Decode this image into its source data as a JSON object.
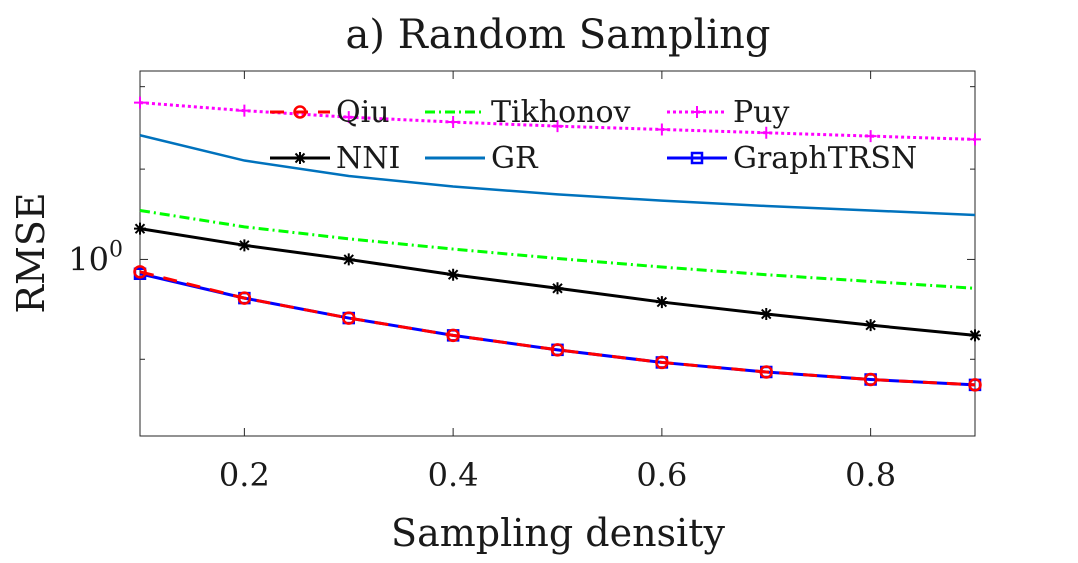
{
  "chart_data": {
    "type": "line",
    "title": "a) Random Sampling",
    "xlabel": "Sampling density",
    "ylabel": "RMSE",
    "yscale": "log",
    "xlim": [
      0.1,
      0.9
    ],
    "ylim": [
      0.83,
      1.22
    ],
    "xticks": [
      0.2,
      0.4,
      0.6,
      0.8
    ],
    "xtick_labels": [
      "0.2",
      "0.4",
      "0.6",
      "0.8"
    ],
    "yticks": [
      1.0
    ],
    "ytick_label_base": "10",
    "ytick_label_exp": "0",
    "grid": false,
    "legend_position": "top",
    "x": [
      0.1,
      0.2,
      0.3,
      0.4,
      0.5,
      0.6,
      0.7,
      0.8,
      0.9
    ],
    "series": [
      {
        "name": "Qiu",
        "color": "#ff0000",
        "dash": "14 10",
        "marker": "circle",
        "values": [
          0.987,
          0.96,
          0.94,
          0.923,
          0.909,
          0.897,
          0.888,
          0.881,
          0.876
        ]
      },
      {
        "name": "Tikhonov",
        "color": "#00ff00",
        "dash": "10 4 2 4",
        "marker": "none",
        "values": [
          1.053,
          1.035,
          1.022,
          1.011,
          1.001,
          0.992,
          0.984,
          0.977,
          0.97
        ]
      },
      {
        "name": "Puy",
        "color": "#ff00ff",
        "dash": "3 3",
        "marker": "plus",
        "values": [
          1.18,
          1.17,
          1.162,
          1.156,
          1.151,
          1.147,
          1.143,
          1.139,
          1.135
        ]
      },
      {
        "name": "NNI",
        "color": "#000000",
        "dash": "",
        "marker": "asterisk",
        "values": [
          1.033,
          1.015,
          1.0,
          0.984,
          0.97,
          0.956,
          0.944,
          0.933,
          0.923
        ]
      },
      {
        "name": "GR",
        "color": "#0072bd",
        "dash": "",
        "marker": "none",
        "values": [
          1.14,
          1.11,
          1.092,
          1.08,
          1.071,
          1.064,
          1.058,
          1.053,
          1.048
        ]
      },
      {
        "name": "GraphTRSN",
        "color": "#0000ff",
        "dash": "",
        "marker": "square",
        "values": [
          0.985,
          0.96,
          0.94,
          0.923,
          0.909,
          0.897,
          0.888,
          0.881,
          0.876
        ]
      }
    ]
  }
}
